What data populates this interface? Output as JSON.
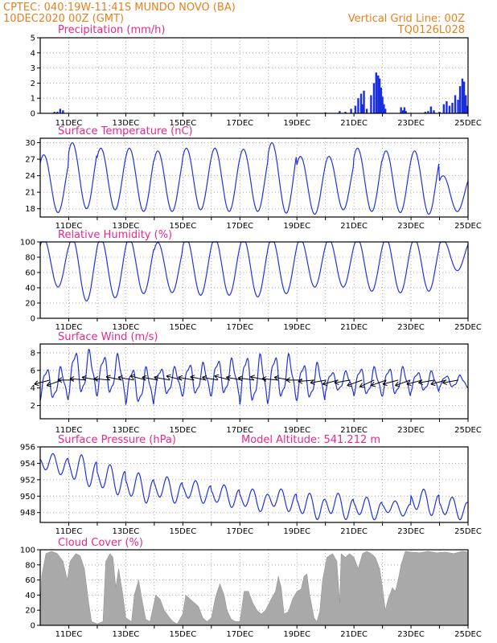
{
  "header": {
    "left_line1": "CPTEC:   040:19W-11:41S   MUNDO NOVO (BA)",
    "left_line2": "10DEC2020 00Z (GMT)",
    "right_line1": "Vertical Grid Line: 00Z",
    "right_line2": "TQ0126L028",
    "model_altitude": "Model Altitude: 541.212 m"
  },
  "colors": {
    "line": "#2233dd",
    "bar": "#1a2ee0",
    "cloud": "#a9a9a9",
    "header": "#e8801a",
    "panel_title": "#e8288c"
  },
  "date_labels": [
    "11DEC",
    "13DEC",
    "15DEC",
    "17DEC",
    "19DEC",
    "21DEC",
    "23DEC",
    "25DEC"
  ],
  "chart_data": [
    {
      "id": "precip",
      "type": "bar",
      "title": "Precipitation (mm/h)",
      "ylim": [
        0,
        5
      ],
      "yticks": [
        0,
        1,
        2,
        3,
        4,
        5
      ],
      "x_unit": "days since 10DEC2020 00Z",
      "xlim": [
        0,
        15
      ],
      "points": [
        [
          0.5,
          0.1
        ],
        [
          0.6,
          0.1
        ],
        [
          0.7,
          0.3
        ],
        [
          0.8,
          0.2
        ],
        [
          5.0,
          0.05
        ],
        [
          10.0,
          0.05
        ],
        [
          10.5,
          0.15
        ],
        [
          10.7,
          0.1
        ],
        [
          10.9,
          0.3
        ],
        [
          11.05,
          0.5
        ],
        [
          11.15,
          1.0
        ],
        [
          11.25,
          1.3
        ],
        [
          11.3,
          0.6
        ],
        [
          11.35,
          1.5
        ],
        [
          11.45,
          0.3
        ],
        [
          11.6,
          1.2
        ],
        [
          11.7,
          2.0
        ],
        [
          11.78,
          2.7
        ],
        [
          11.85,
          2.5
        ],
        [
          11.9,
          2.3
        ],
        [
          11.95,
          1.7
        ],
        [
          12.0,
          1.1
        ],
        [
          12.05,
          0.6
        ],
        [
          12.1,
          0.3
        ],
        [
          12.65,
          0.4
        ],
        [
          12.72,
          0.2
        ],
        [
          12.77,
          0.4
        ],
        [
          12.82,
          0.15
        ],
        [
          13.5,
          0.1
        ],
        [
          13.6,
          0.15
        ],
        [
          13.7,
          0.45
        ],
        [
          13.8,
          0.2
        ],
        [
          14.0,
          0.1
        ],
        [
          14.15,
          0.6
        ],
        [
          14.25,
          0.8
        ],
        [
          14.35,
          0.5
        ],
        [
          14.45,
          0.7
        ],
        [
          14.55,
          1.2
        ],
        [
          14.65,
          0.9
        ],
        [
          14.72,
          1.8
        ],
        [
          14.8,
          2.3
        ],
        [
          14.86,
          2.1
        ],
        [
          14.92,
          1.2
        ],
        [
          14.97,
          0.5
        ]
      ]
    },
    {
      "id": "temp",
      "type": "line",
      "title": "Surface Temperature (nC)",
      "ylim": [
        16.5,
        30.8
      ],
      "yticks": [
        18,
        21,
        24,
        27,
        30
      ],
      "daily_extremes": [
        [
          17.3,
          27.8
        ],
        [
          18.0,
          30.0
        ],
        [
          17.8,
          29.0
        ],
        [
          17.5,
          29.0
        ],
        [
          17.5,
          28.5
        ],
        [
          17.8,
          29.0
        ],
        [
          17.5,
          29.0
        ],
        [
          17.5,
          28.8
        ],
        [
          17.2,
          30.0
        ],
        [
          17.0,
          27.5
        ],
        [
          17.8,
          27.5
        ],
        [
          17.5,
          29.0
        ],
        [
          17.3,
          28.5
        ],
        [
          17.0,
          28.5
        ],
        [
          17.5,
          24.0
        ]
      ]
    },
    {
      "id": "rh",
      "type": "line",
      "title": "Relative Humidity (%)",
      "ylim": [
        0,
        100
      ],
      "yticks": [
        0,
        20,
        40,
        60,
        80,
        100
      ],
      "daily_extremes": [
        [
          45,
          100
        ],
        [
          28,
          100
        ],
        [
          32,
          100
        ],
        [
          37,
          100
        ],
        [
          38,
          95
        ],
        [
          35,
          100
        ],
        [
          35,
          100
        ],
        [
          33,
          100
        ],
        [
          37,
          100
        ],
        [
          45,
          100
        ],
        [
          45,
          100
        ],
        [
          40,
          100
        ],
        [
          38,
          100
        ],
        [
          40,
          100
        ],
        [
          65,
          100
        ]
      ]
    },
    {
      "id": "wind",
      "type": "line",
      "title": "Surface Wind (m/s)",
      "ylim": [
        0.5,
        9.0
      ],
      "yticks": [
        2,
        4,
        6,
        8
      ],
      "daily_extremes": [
        [
          2.5,
          6.5
        ],
        [
          3.0,
          8.5
        ],
        [
          3.0,
          8.0
        ],
        [
          2.0,
          6.5
        ],
        [
          3.0,
          6.5
        ],
        [
          3.0,
          7.0
        ],
        [
          3.0,
          7.5
        ],
        [
          2.0,
          8.0
        ],
        [
          2.5,
          8.0
        ],
        [
          2.5,
          7.0
        ],
        [
          3.5,
          6.0
        ],
        [
          3.0,
          6.5
        ],
        [
          3.0,
          6.5
        ],
        [
          3.5,
          6.0
        ],
        [
          4.0,
          5.5
        ]
      ],
      "vector_angles_deg": [
        195,
        200,
        180,
        175,
        170,
        175,
        168,
        170,
        165,
        170,
        170,
        165,
        170,
        168,
        170,
        165,
        170,
        172,
        168,
        175,
        170,
        180,
        185,
        190,
        195,
        190,
        200,
        205,
        200,
        195,
        200,
        195,
        190,
        195,
        190
      ]
    },
    {
      "id": "pres",
      "type": "line",
      "title": "Surface Pressure (hPa)",
      "ylim": [
        946.8,
        956.0
      ],
      "yticks": [
        948,
        950,
        952,
        954,
        956
      ],
      "daily_extremes": [
        [
          952.5,
          955.3
        ],
        [
          951.0,
          955.2
        ],
        [
          950.0,
          954.0
        ],
        [
          949.0,
          953.0
        ],
        [
          949.0,
          952.5
        ],
        [
          949.0,
          952.0
        ],
        [
          948.5,
          951.5
        ],
        [
          948.0,
          951.0
        ],
        [
          948.0,
          951.0
        ],
        [
          947.0,
          950.5
        ],
        [
          947.0,
          950.5
        ],
        [
          947.0,
          950.0
        ],
        [
          947.5,
          949.5
        ],
        [
          947.5,
          951.0
        ],
        [
          947.0,
          950.0
        ]
      ]
    },
    {
      "id": "cloud",
      "type": "area",
      "title": "Cloud Cover (%)",
      "ylim": [
        0,
        100
      ],
      "yticks": [
        0,
        20,
        40,
        60,
        80,
        100
      ],
      "points": [
        [
          0.0,
          20
        ],
        [
          0.05,
          65
        ],
        [
          0.2,
          95
        ],
        [
          0.4,
          98
        ],
        [
          0.6,
          95
        ],
        [
          0.8,
          85
        ],
        [
          0.95,
          60
        ],
        [
          1.05,
          85
        ],
        [
          1.25,
          95
        ],
        [
          1.4,
          92
        ],
        [
          1.55,
          75
        ],
        [
          1.7,
          30
        ],
        [
          1.8,
          5
        ],
        [
          2.0,
          2
        ],
        [
          2.2,
          5
        ],
        [
          2.3,
          85
        ],
        [
          2.45,
          95
        ],
        [
          2.55,
          90
        ],
        [
          2.65,
          50
        ],
        [
          2.75,
          75
        ],
        [
          2.9,
          40
        ],
        [
          3.0,
          10
        ],
        [
          3.2,
          5
        ],
        [
          3.3,
          40
        ],
        [
          3.45,
          60
        ],
        [
          3.55,
          38
        ],
        [
          3.7,
          8
        ],
        [
          3.85,
          5
        ],
        [
          4.05,
          40
        ],
        [
          4.2,
          35
        ],
        [
          4.35,
          20
        ],
        [
          4.5,
          12
        ],
        [
          4.65,
          5
        ],
        [
          4.8,
          2
        ],
        [
          5.0,
          15
        ],
        [
          5.1,
          40
        ],
        [
          5.25,
          35
        ],
        [
          5.4,
          30
        ],
        [
          5.55,
          25
        ],
        [
          5.7,
          10
        ],
        [
          5.85,
          5
        ],
        [
          6.0,
          10
        ],
        [
          6.15,
          38
        ],
        [
          6.3,
          55
        ],
        [
          6.45,
          40
        ],
        [
          6.55,
          20
        ],
        [
          6.7,
          8
        ],
        [
          6.85,
          5
        ],
        [
          7.0,
          5
        ],
        [
          7.15,
          45
        ],
        [
          7.3,
          45
        ],
        [
          7.45,
          30
        ],
        [
          7.6,
          20
        ],
        [
          7.75,
          15
        ],
        [
          7.9,
          20
        ],
        [
          8.1,
          35
        ],
        [
          8.25,
          45
        ],
        [
          8.35,
          65
        ],
        [
          8.45,
          50
        ],
        [
          8.55,
          15
        ],
        [
          8.7,
          18
        ],
        [
          8.85,
          35
        ],
        [
          9.0,
          45
        ],
        [
          9.15,
          48
        ],
        [
          9.25,
          65
        ],
        [
          9.35,
          68
        ],
        [
          9.45,
          40
        ],
        [
          9.6,
          10
        ],
        [
          9.7,
          5
        ],
        [
          9.8,
          18
        ],
        [
          9.9,
          60
        ],
        [
          10.05,
          90
        ],
        [
          10.25,
          95
        ],
        [
          10.4,
          85
        ],
        [
          10.5,
          30
        ],
        [
          10.55,
          95
        ],
        [
          10.7,
          90
        ],
        [
          10.85,
          95
        ],
        [
          11.0,
          90
        ],
        [
          11.15,
          75
        ],
        [
          11.3,
          95
        ],
        [
          11.45,
          98
        ],
        [
          11.6,
          95
        ],
        [
          11.75,
          90
        ],
        [
          11.9,
          75
        ],
        [
          12.0,
          50
        ],
        [
          12.1,
          20
        ],
        [
          12.2,
          35
        ],
        [
          12.35,
          50
        ],
        [
          12.45,
          45
        ],
        [
          12.55,
          60
        ],
        [
          12.65,
          80
        ],
        [
          12.8,
          98
        ],
        [
          13.0,
          97
        ],
        [
          13.3,
          96
        ],
        [
          13.6,
          98
        ],
        [
          13.9,
          96
        ],
        [
          14.2,
          97
        ],
        [
          14.5,
          95
        ],
        [
          14.8,
          98
        ],
        [
          15.0,
          97
        ]
      ]
    }
  ]
}
